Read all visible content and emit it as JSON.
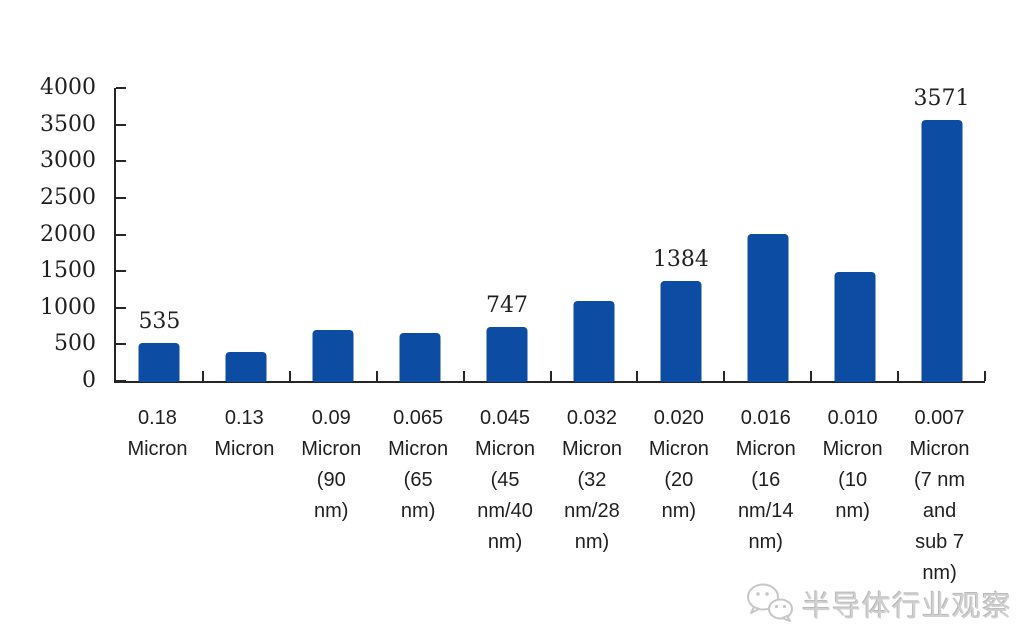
{
  "chart_data": {
    "type": "bar",
    "title": "",
    "xlabel": "",
    "ylabel": "",
    "categories": [
      "0.18\nMicron",
      "0.13\nMicron",
      "0.09\nMicron\n(90\nnm)",
      "0.065\nMicron\n(65\nnm)",
      "0.045\nMicron\n(45\nnm/40\nnm)",
      "0.032\nMicron\n(32\nnm/28\nnm)",
      "0.020\nMicron\n(20\nnm)",
      "0.016\nMicron\n(16\nnm/14\nnm)",
      "0.010\nMicron\n(10\nnm)",
      "0.007\nMicron\n(7 nm\nand\nsub 7\nnm)"
    ],
    "values": [
      535,
      415,
      710,
      665,
      747,
      1100,
      1384,
      2020,
      1500,
      3571
    ],
    "data_labels": [
      "535",
      "",
      "",
      "",
      "747",
      "",
      "1384",
      "",
      "",
      "3571"
    ],
    "ylim": [
      0,
      4000
    ],
    "ytick_step": 500,
    "yticks": [
      "4000",
      "3500",
      "3000",
      "2500",
      "2000",
      "1500",
      "1000",
      "500",
      "0"
    ],
    "grid": false,
    "legend": null,
    "bar_color": "#0d4ca3",
    "axis_color": "#262626",
    "label_color": "#1f1f1f"
  },
  "watermark": {
    "text": "半导体行业观察",
    "icon": "wechat-icon",
    "color": "#d0d0d0"
  }
}
